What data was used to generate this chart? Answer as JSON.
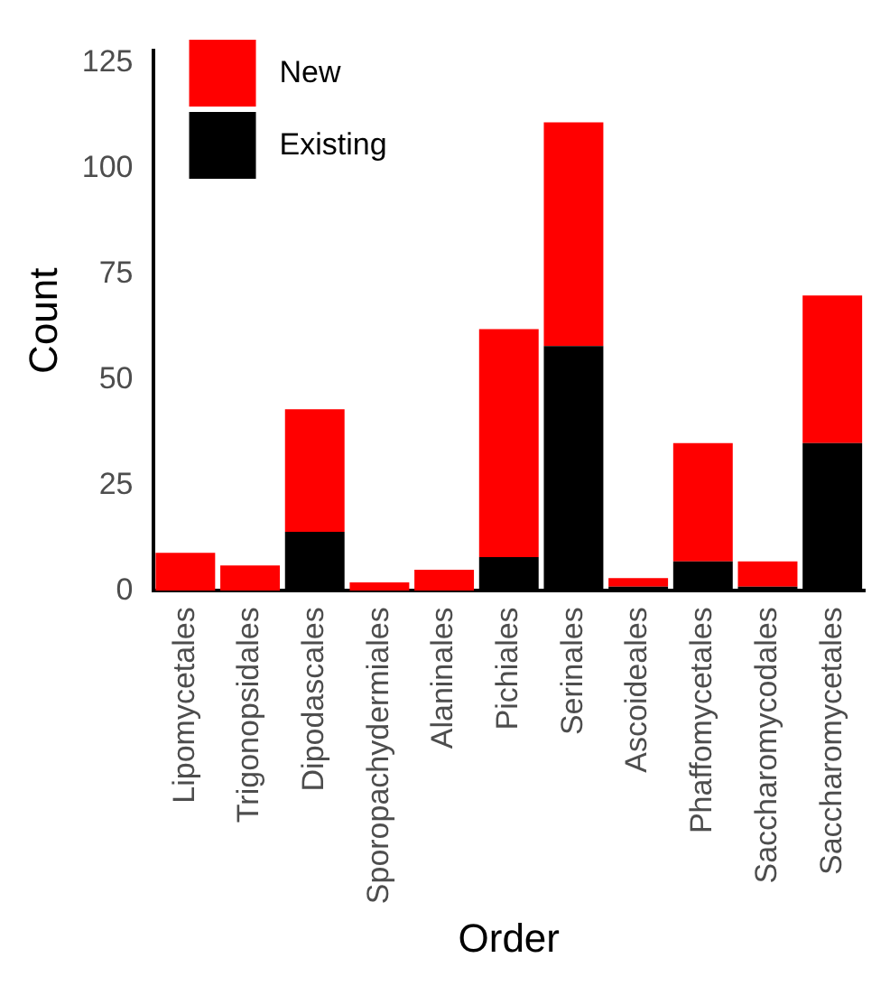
{
  "chart_data": {
    "type": "bar",
    "xlabel": "Order",
    "ylabel": "Count",
    "categories": [
      "Lipomycetales",
      "Trigonopsidales",
      "Dipodascales",
      "Sporopachydermiales",
      "Alaninales",
      "Pichiales",
      "Serinales",
      "Ascoideales",
      "Phaffomycetales",
      "Saccharomycodales",
      "Saccharomycetales"
    ],
    "series": [
      {
        "name": "Existing",
        "color": "#000000",
        "values": [
          0,
          0,
          14,
          0,
          0,
          8,
          58,
          1,
          7,
          1,
          35
        ]
      },
      {
        "name": "New",
        "color": "#ff0000",
        "values": [
          9,
          6,
          29,
          2,
          5,
          54,
          53,
          2,
          28,
          6,
          35
        ]
      }
    ],
    "stacked": true,
    "ylim": [
      0,
      128
    ],
    "yticks": [
      0,
      25,
      50,
      75,
      100,
      125
    ],
    "grid": false,
    "legend": "top left"
  }
}
